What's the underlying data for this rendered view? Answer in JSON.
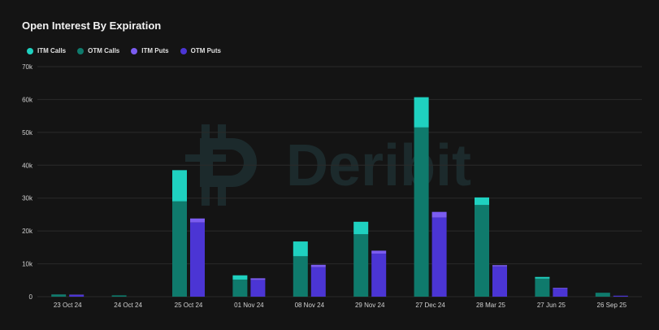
{
  "title": "Open Interest By Expiration",
  "colors": {
    "itm_calls": "#1fd1c0",
    "otm_calls": "#0f7a6c",
    "itm_puts": "#7b5cf0",
    "otm_puts": "#4b35d4",
    "grid": "#2a2a2a",
    "watermark": "#1c2a2c"
  },
  "watermark": "Deribit",
  "chart_data": {
    "type": "bar",
    "stacked": true,
    "title": "Open Interest By Expiration",
    "xlabel": "",
    "ylabel": "",
    "ylim": [
      0,
      70000
    ],
    "y_ticks": [
      0,
      10000,
      20000,
      30000,
      40000,
      50000,
      60000,
      70000
    ],
    "y_tick_labels": [
      "0",
      "10k",
      "20k",
      "30k",
      "40k",
      "50k",
      "60k",
      "70k"
    ],
    "legend_position": "top-left",
    "categories": [
      "23 Oct 24",
      "24 Oct 24",
      "25 Oct 24",
      "01 Nov 24",
      "08 Nov 24",
      "29 Nov 24",
      "27 Dec 24",
      "28 Mar 25",
      "27 Jun 25",
      "26 Sep 25"
    ],
    "series": [
      {
        "name": "ITM Calls",
        "stack": "calls",
        "color_key": "itm_calls",
        "values": [
          100,
          0,
          9500,
          1300,
          4500,
          3800,
          9200,
          2300,
          500,
          0
        ]
      },
      {
        "name": "OTM Calls",
        "stack": "calls",
        "color_key": "otm_calls",
        "values": [
          500,
          400,
          29000,
          5200,
          12300,
          19000,
          51500,
          27900,
          5500,
          1200
        ]
      },
      {
        "name": "ITM Puts",
        "stack": "puts",
        "color_key": "itm_puts",
        "values": [
          100,
          0,
          1200,
          500,
          700,
          900,
          1700,
          400,
          200,
          0
        ]
      },
      {
        "name": "OTM Puts",
        "stack": "puts",
        "color_key": "otm_puts",
        "values": [
          500,
          0,
          22600,
          5100,
          9000,
          13100,
          24100,
          9200,
          2500,
          300
        ]
      }
    ]
  }
}
